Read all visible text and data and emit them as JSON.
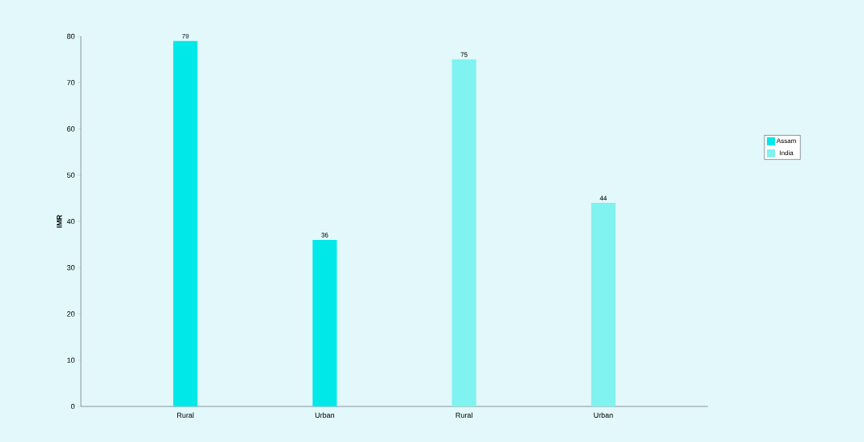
{
  "chart_data": {
    "type": "bar",
    "ylabel": "IMR",
    "categories": [
      "Rural",
      "Urban",
      "Rural",
      "Urban"
    ],
    "series": [
      {
        "name": "Assam",
        "color": "#00e8e8",
        "values": [
          79,
          36,
          null,
          null
        ]
      },
      {
        "name": "India",
        "color": "#80f2f0",
        "values": [
          null,
          null,
          75,
          44
        ]
      }
    ],
    "ylim": [
      0,
      80
    ],
    "yticks": [
      0,
      10,
      20,
      30,
      40,
      50,
      60,
      70,
      80
    ],
    "data_labels": true,
    "legend": "right"
  }
}
